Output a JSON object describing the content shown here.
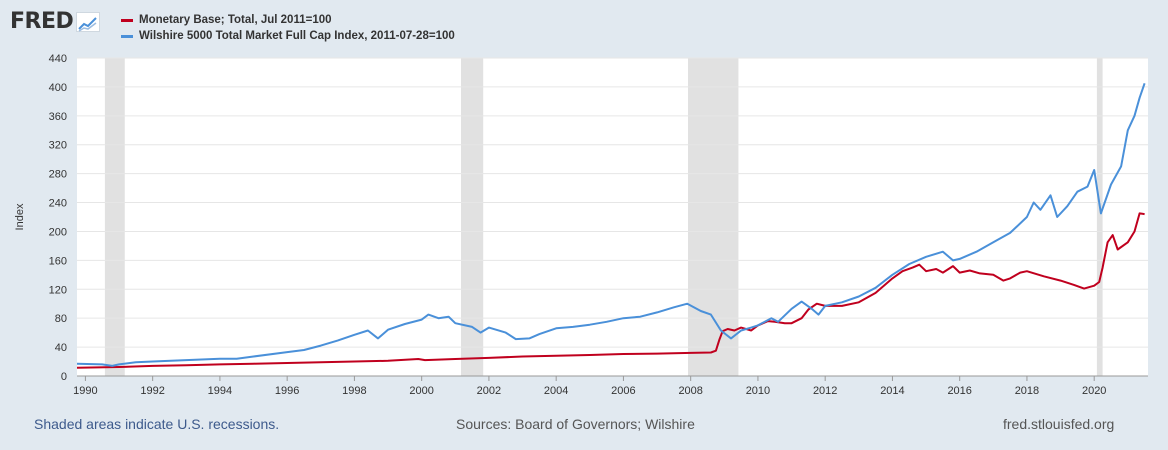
{
  "header": {
    "logo_text": "FRED",
    "logo_icon": "chart-line-icon"
  },
  "chart_data": {
    "type": "line",
    "title": "",
    "xlabel": "",
    "ylabel": "Index",
    "xlim": [
      1989.75,
      2021.6
    ],
    "ylim": [
      0,
      440
    ],
    "y_ticks": [
      0,
      40,
      80,
      120,
      160,
      200,
      240,
      280,
      320,
      360,
      400,
      440
    ],
    "x_ticks": [
      "1990",
      "1992",
      "1994",
      "1996",
      "1998",
      "2000",
      "2002",
      "2004",
      "2006",
      "2008",
      "2010",
      "2012",
      "2014",
      "2016",
      "2018",
      "2020"
    ],
    "recessions": [
      [
        1990.58,
        1991.17
      ],
      [
        2001.17,
        2001.83
      ],
      [
        2007.92,
        2009.42
      ],
      [
        2020.08,
        2020.25
      ]
    ],
    "grid": true,
    "legend_position": "top-left",
    "series": [
      {
        "name": "Monetary Base; Total, Jul 2011=100",
        "color": "#c0001e",
        "points": [
          [
            1989.75,
            11.5
          ],
          [
            1991.0,
            12.5
          ],
          [
            1992.0,
            14
          ],
          [
            1993.0,
            15
          ],
          [
            1994.0,
            16
          ],
          [
            1995.0,
            17
          ],
          [
            1996.0,
            18
          ],
          [
            1997.0,
            19
          ],
          [
            1998.0,
            20
          ],
          [
            1999.0,
            21
          ],
          [
            1999.9,
            23.5
          ],
          [
            2000.1,
            22
          ],
          [
            2001.0,
            23.5
          ],
          [
            2002.0,
            25
          ],
          [
            2003.0,
            27
          ],
          [
            2004.0,
            28
          ],
          [
            2005.0,
            29
          ],
          [
            2006.0,
            30.5
          ],
          [
            2007.0,
            31
          ],
          [
            2008.0,
            32
          ],
          [
            2008.6,
            32.5
          ],
          [
            2008.75,
            35
          ],
          [
            2008.85,
            50
          ],
          [
            2008.95,
            62
          ],
          [
            2009.1,
            65
          ],
          [
            2009.3,
            63
          ],
          [
            2009.5,
            67
          ],
          [
            2009.8,
            63
          ],
          [
            2010.0,
            70
          ],
          [
            2010.3,
            76
          ],
          [
            2010.5,
            75
          ],
          [
            2010.8,
            73
          ],
          [
            2011.0,
            73
          ],
          [
            2011.3,
            80
          ],
          [
            2011.5,
            92
          ],
          [
            2011.75,
            100
          ],
          [
            2012.0,
            97
          ],
          [
            2012.5,
            97
          ],
          [
            2013.0,
            102
          ],
          [
            2013.5,
            115
          ],
          [
            2014.0,
            135
          ],
          [
            2014.3,
            145
          ],
          [
            2014.6,
            150
          ],
          [
            2014.8,
            154
          ],
          [
            2015.0,
            145
          ],
          [
            2015.3,
            148
          ],
          [
            2015.5,
            143
          ],
          [
            2015.8,
            152
          ],
          [
            2016.0,
            143
          ],
          [
            2016.3,
            146
          ],
          [
            2016.6,
            142
          ],
          [
            2017.0,
            140
          ],
          [
            2017.3,
            132
          ],
          [
            2017.5,
            135
          ],
          [
            2017.8,
            143
          ],
          [
            2018.0,
            145
          ],
          [
            2018.5,
            138
          ],
          [
            2019.0,
            132
          ],
          [
            2019.4,
            126
          ],
          [
            2019.7,
            121
          ],
          [
            2020.0,
            125
          ],
          [
            2020.15,
            130
          ],
          [
            2020.25,
            150
          ],
          [
            2020.4,
            185
          ],
          [
            2020.55,
            195
          ],
          [
            2020.7,
            175
          ],
          [
            2021.0,
            185
          ],
          [
            2021.2,
            200
          ],
          [
            2021.35,
            225
          ],
          [
            2021.5,
            224
          ]
        ]
      },
      {
        "name": "Wilshire 5000 Total Market Full Cap Index, 2011-07-28=100",
        "color": "#4a90d9",
        "points": [
          [
            1989.75,
            17
          ],
          [
            1990.5,
            16
          ],
          [
            1990.8,
            14
          ],
          [
            1991.0,
            16
          ],
          [
            1991.5,
            19
          ],
          [
            1992.0,
            20
          ],
          [
            1993.0,
            22
          ],
          [
            1994.0,
            24
          ],
          [
            1994.5,
            24
          ],
          [
            1995.0,
            27
          ],
          [
            1996.0,
            33
          ],
          [
            1996.5,
            36
          ],
          [
            1997.0,
            42
          ],
          [
            1997.5,
            49
          ],
          [
            1998.0,
            57
          ],
          [
            1998.4,
            63
          ],
          [
            1998.7,
            52
          ],
          [
            1999.0,
            64
          ],
          [
            1999.5,
            72
          ],
          [
            2000.0,
            78
          ],
          [
            2000.2,
            85
          ],
          [
            2000.5,
            80
          ],
          [
            2000.8,
            82
          ],
          [
            2001.0,
            73
          ],
          [
            2001.5,
            68
          ],
          [
            2001.75,
            60
          ],
          [
            2002.0,
            67
          ],
          [
            2002.5,
            60
          ],
          [
            2002.8,
            51
          ],
          [
            2003.2,
            52
          ],
          [
            2003.5,
            58
          ],
          [
            2004.0,
            66
          ],
          [
            2004.5,
            68
          ],
          [
            2005.0,
            71
          ],
          [
            2005.5,
            75
          ],
          [
            2006.0,
            80
          ],
          [
            2006.5,
            82
          ],
          [
            2007.0,
            88
          ],
          [
            2007.5,
            95
          ],
          [
            2007.9,
            100
          ],
          [
            2008.3,
            90
          ],
          [
            2008.6,
            85
          ],
          [
            2008.9,
            63
          ],
          [
            2009.2,
            52
          ],
          [
            2009.5,
            63
          ],
          [
            2009.8,
            67
          ],
          [
            2010.0,
            70
          ],
          [
            2010.4,
            80
          ],
          [
            2010.6,
            75
          ],
          [
            2011.0,
            93
          ],
          [
            2011.3,
            103
          ],
          [
            2011.6,
            93
          ],
          [
            2011.8,
            85
          ],
          [
            2012.0,
            97
          ],
          [
            2012.5,
            102
          ],
          [
            2013.0,
            110
          ],
          [
            2013.5,
            122
          ],
          [
            2014.0,
            140
          ],
          [
            2014.5,
            155
          ],
          [
            2015.0,
            165
          ],
          [
            2015.5,
            172
          ],
          [
            2015.8,
            160
          ],
          [
            2016.0,
            162
          ],
          [
            2016.5,
            172
          ],
          [
            2017.0,
            185
          ],
          [
            2017.5,
            198
          ],
          [
            2018.0,
            220
          ],
          [
            2018.2,
            240
          ],
          [
            2018.4,
            230
          ],
          [
            2018.7,
            250
          ],
          [
            2018.9,
            220
          ],
          [
            2019.2,
            235
          ],
          [
            2019.5,
            255
          ],
          [
            2019.8,
            262
          ],
          [
            2020.0,
            285
          ],
          [
            2020.2,
            225
          ],
          [
            2020.5,
            265
          ],
          [
            2020.8,
            290
          ],
          [
            2021.0,
            340
          ],
          [
            2021.2,
            360
          ],
          [
            2021.35,
            385
          ],
          [
            2021.5,
            405
          ]
        ]
      }
    ]
  },
  "footer": {
    "recession_note": "Shaded areas indicate U.S. recessions.",
    "sources": "Sources: Board of Governors; Wilshire",
    "site": "fred.stlouisfed.org"
  }
}
